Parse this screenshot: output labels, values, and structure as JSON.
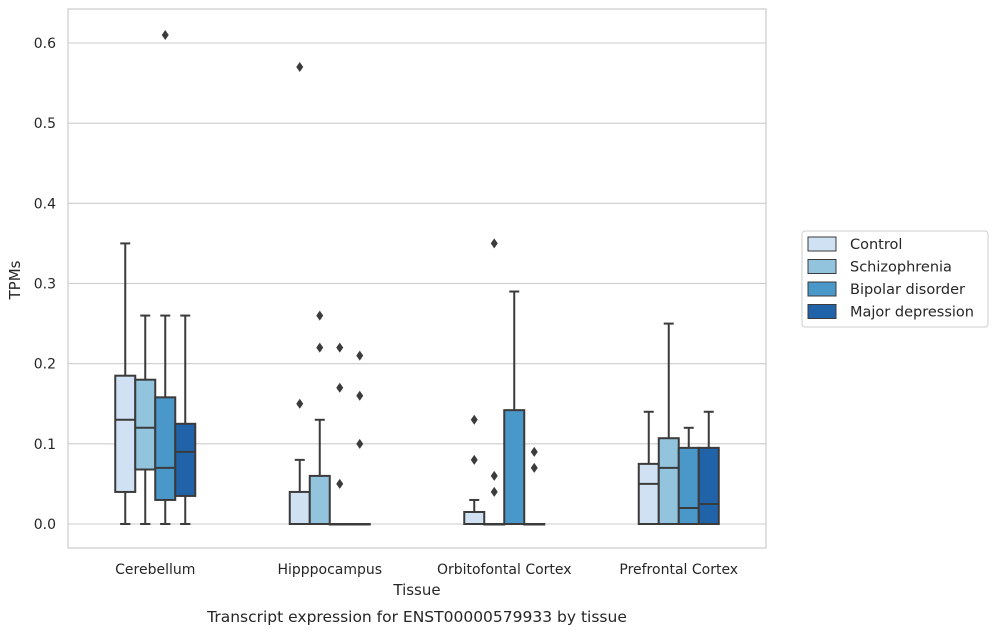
{
  "chart_data": {
    "type": "boxplot",
    "xlabel": "Tissue",
    "ylabel": "TPMs",
    "caption": "Transcript expression for ENST00000579933 by tissue",
    "ylim": [
      -0.03,
      0.64
    ],
    "yticks": [
      "0.0",
      "0.1",
      "0.2",
      "0.3",
      "0.4",
      "0.5",
      "0.6"
    ],
    "grid": true,
    "legend_position": "right",
    "categories": [
      "Cerebellum",
      "Hipppocampus",
      "Orbitofontal Cortex",
      "Prefrontal Cortex"
    ],
    "series": [
      {
        "name": "Control",
        "color": "#cfe1f2",
        "boxes": [
          {
            "q1": 0.04,
            "median": 0.13,
            "q3": 0.185,
            "wlo": 0.0,
            "whi": 0.35,
            "outliers": []
          },
          {
            "q1": 0.0,
            "median": 0.0,
            "q3": 0.04,
            "wlo": 0.0,
            "whi": 0.08,
            "outliers": [
              0.15,
              0.57
            ]
          },
          {
            "q1": 0.0,
            "median": 0.0,
            "q3": 0.015,
            "wlo": 0.0,
            "whi": 0.03,
            "outliers": [
              0.08,
              0.13
            ]
          },
          {
            "q1": 0.0,
            "median": 0.05,
            "q3": 0.075,
            "wlo": 0.0,
            "whi": 0.14,
            "outliers": []
          }
        ]
      },
      {
        "name": "Schizophrenia",
        "color": "#93c4de",
        "boxes": [
          {
            "q1": 0.068,
            "median": 0.12,
            "q3": 0.18,
            "wlo": 0.0,
            "whi": 0.26,
            "outliers": []
          },
          {
            "q1": 0.0,
            "median": 0.0,
            "q3": 0.06,
            "wlo": 0.0,
            "whi": 0.13,
            "outliers": [
              0.22,
              0.26
            ]
          },
          {
            "q1": 0.0,
            "median": 0.0,
            "q3": 0.0,
            "wlo": 0.0,
            "whi": 0.0,
            "outliers": [
              0.04,
              0.06,
              0.35
            ]
          },
          {
            "q1": 0.0,
            "median": 0.07,
            "q3": 0.107,
            "wlo": 0.0,
            "whi": 0.25,
            "outliers": []
          }
        ]
      },
      {
        "name": "Bipolar disorder",
        "color": "#4a98c9",
        "boxes": [
          {
            "q1": 0.03,
            "median": 0.07,
            "q3": 0.158,
            "wlo": 0.0,
            "whi": 0.26,
            "outliers": [
              0.61
            ]
          },
          {
            "q1": 0.0,
            "median": 0.0,
            "q3": 0.0,
            "wlo": 0.0,
            "whi": 0.0,
            "outliers": [
              0.05,
              0.17,
              0.22
            ]
          },
          {
            "q1": 0.0,
            "median": 0.0,
            "q3": 0.142,
            "wlo": 0.0,
            "whi": 0.29,
            "outliers": []
          },
          {
            "q1": 0.0,
            "median": 0.02,
            "q3": 0.095,
            "wlo": 0.0,
            "whi": 0.12,
            "outliers": []
          }
        ]
      },
      {
        "name": "Major depression",
        "color": "#2163a8",
        "boxes": [
          {
            "q1": 0.035,
            "median": 0.09,
            "q3": 0.125,
            "wlo": 0.0,
            "whi": 0.26,
            "outliers": []
          },
          {
            "q1": 0.0,
            "median": 0.0,
            "q3": 0.0,
            "wlo": 0.0,
            "whi": 0.0,
            "outliers": [
              0.1,
              0.16,
              0.21
            ]
          },
          {
            "q1": 0.0,
            "median": 0.0,
            "q3": 0.0,
            "wlo": 0.0,
            "whi": 0.0,
            "outliers": [
              0.07,
              0.09
            ]
          },
          {
            "q1": 0.0,
            "median": 0.025,
            "q3": 0.095,
            "wlo": 0.0,
            "whi": 0.14,
            "outliers": []
          }
        ]
      }
    ]
  }
}
